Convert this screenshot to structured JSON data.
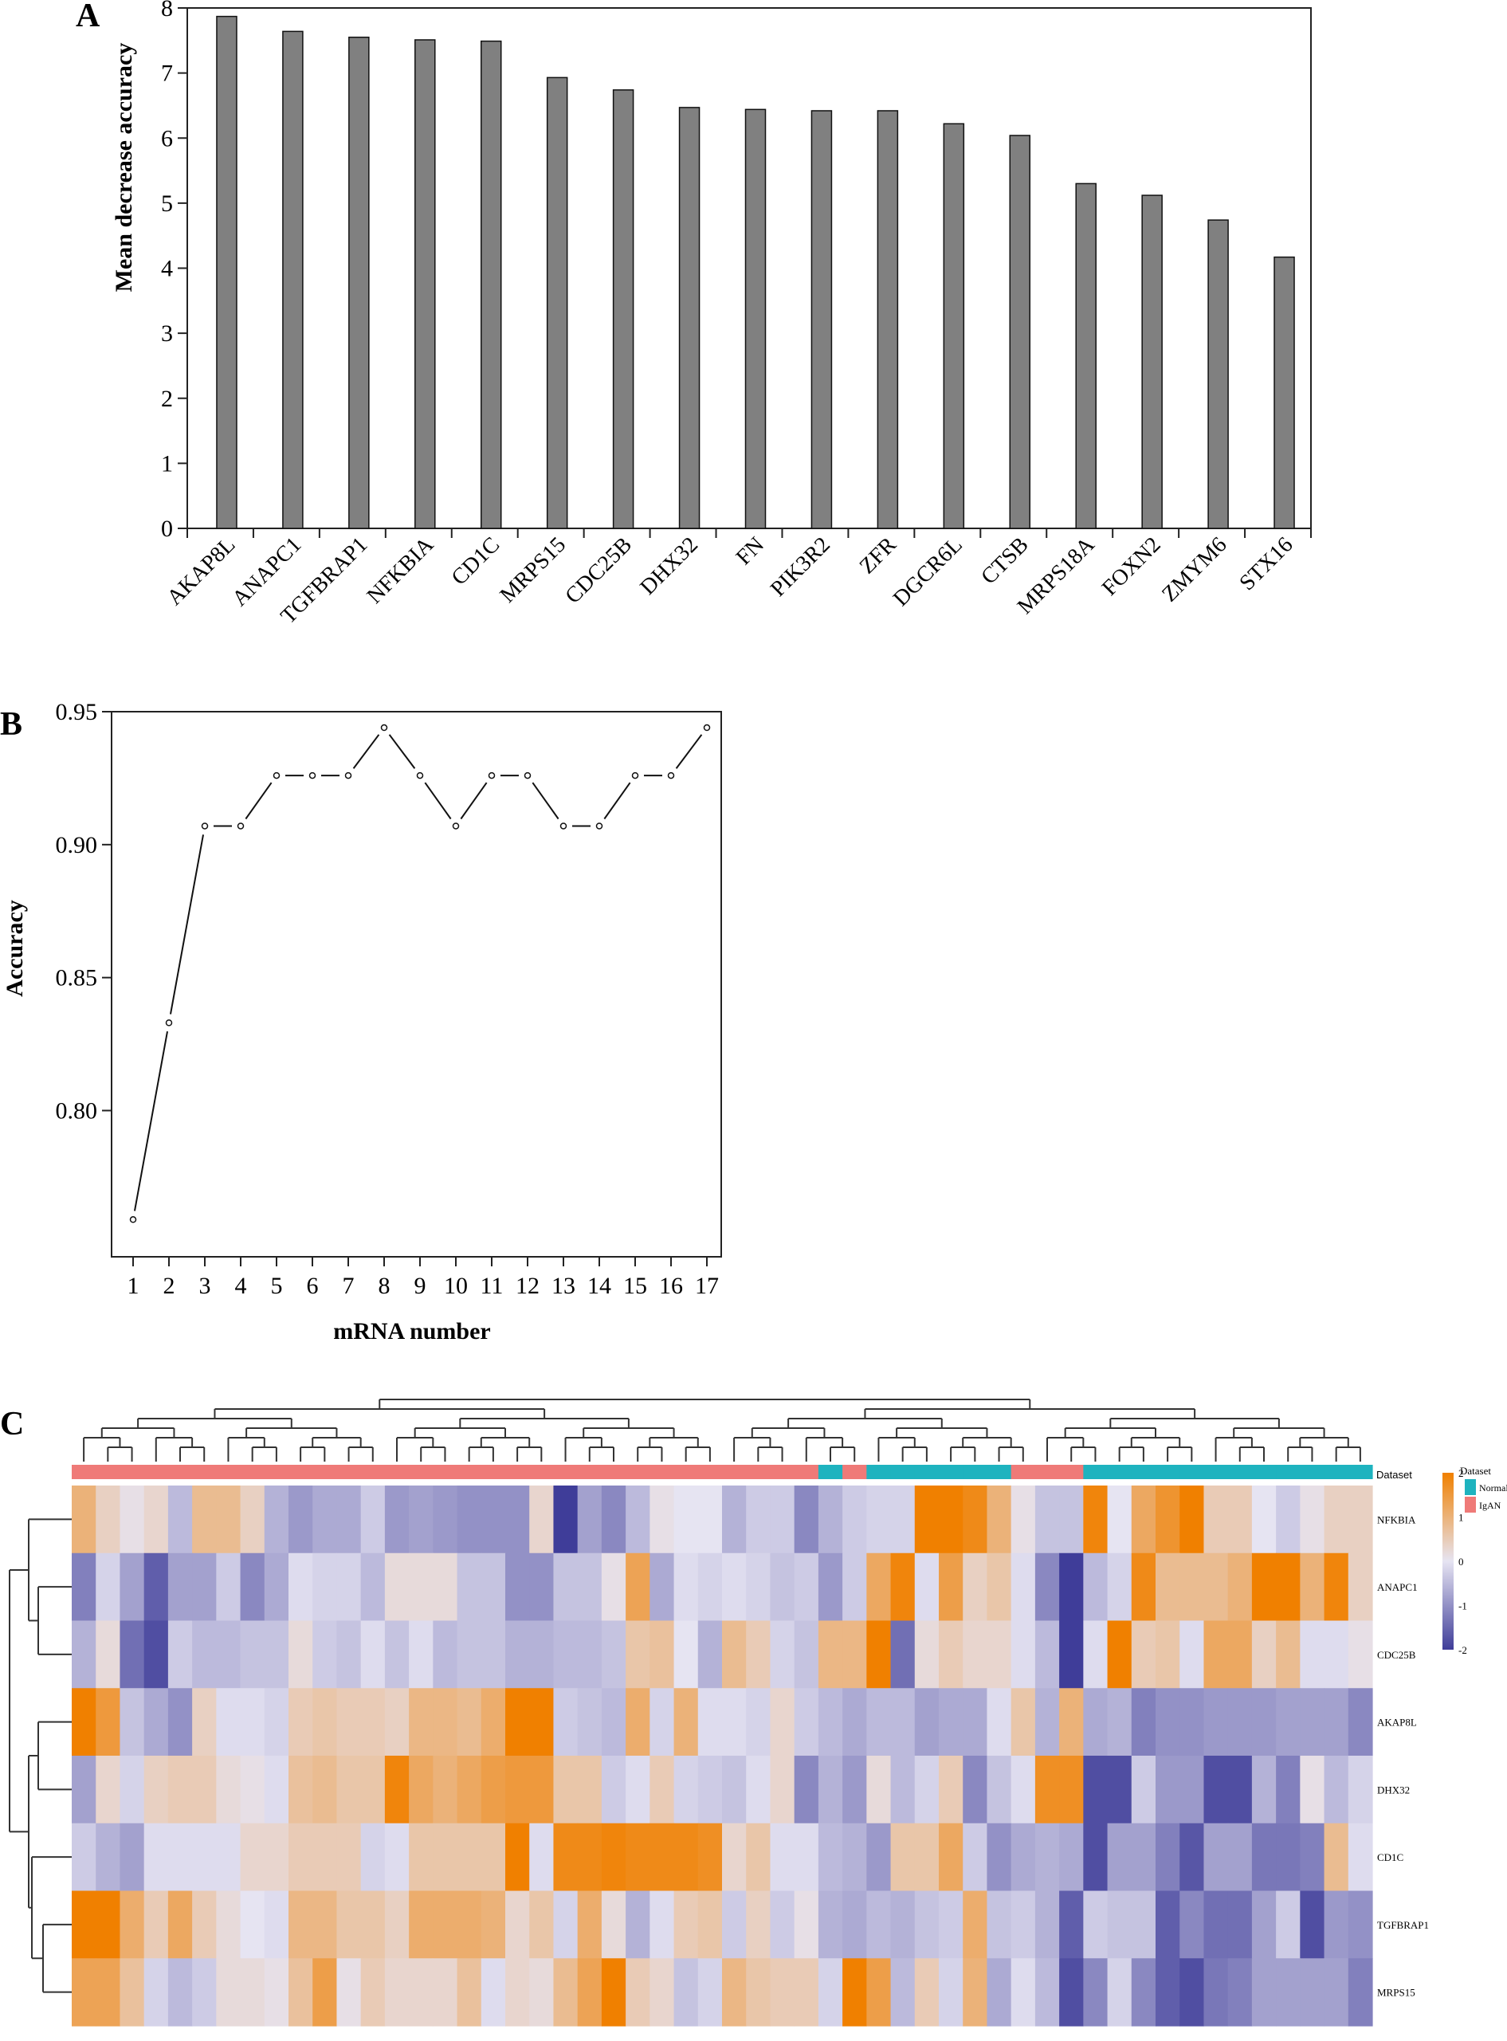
{
  "chart_data": [
    {
      "panel_label": "A",
      "type": "bar",
      "title": "",
      "xlabel": "",
      "ylabel": "Mean decrease accuracy",
      "ylim": [
        0,
        8
      ],
      "yticks": [
        0,
        1,
        2,
        3,
        4,
        5,
        6,
        7,
        8
      ],
      "grid": false,
      "bar_color": "#808080",
      "categories": [
        "AKAP8L",
        "ANAPC1",
        "TGFBRAP1",
        "NFKBIA",
        "CD1C",
        "MRPS15",
        "CDC25B",
        "DHX32",
        "FN",
        "PIK3R2",
        "ZFR",
        "DGCR6L",
        "CTSB",
        "MRPS18A",
        "FOXN2",
        "ZMYM6",
        "STX16"
      ],
      "values": [
        7.87,
        7.64,
        7.55,
        7.51,
        7.49,
        6.93,
        6.74,
        6.47,
        6.44,
        6.42,
        6.42,
        6.22,
        6.04,
        5.3,
        5.12,
        4.74,
        4.17
      ]
    },
    {
      "panel_label": "B",
      "type": "line",
      "title": "",
      "xlabel": "mRNA number",
      "ylabel": "Accuracy",
      "x": [
        1,
        2,
        3,
        4,
        5,
        6,
        7,
        8,
        9,
        10,
        11,
        12,
        13,
        14,
        15,
        16,
        17
      ],
      "values": [
        0.759,
        0.833,
        0.907,
        0.907,
        0.926,
        0.926,
        0.926,
        0.944,
        0.926,
        0.907,
        0.926,
        0.926,
        0.907,
        0.907,
        0.926,
        0.926,
        0.944
      ],
      "ylim": [
        0.745,
        0.95
      ],
      "yticks": [
        "0.80",
        "0.85",
        "0.90",
        "0.95"
      ],
      "ytick_values": [
        0.8,
        0.85,
        0.9,
        0.95
      ],
      "xticks": [
        "1",
        "2",
        "3",
        "4",
        "5",
        "6",
        "7",
        "8",
        "9",
        "10",
        "11",
        "12",
        "13",
        "14",
        "15",
        "16",
        "17"
      ],
      "grid": false,
      "marker": "open-circle"
    },
    {
      "panel_label": "C",
      "type": "heatmap",
      "title": "",
      "rows": [
        "NFKBIA",
        "ANAPC1",
        "CDC25B",
        "AKAP8L",
        "DHX32",
        "CD1C",
        "TGFBRAP1",
        "MRPS15"
      ],
      "annotation_label": "Dataset",
      "column_groups": [
        "IgAN",
        "IgAN",
        "IgAN",
        "IgAN",
        "IgAN",
        "IgAN",
        "IgAN",
        "IgAN",
        "IgAN",
        "IgAN",
        "IgAN",
        "IgAN",
        "IgAN",
        "IgAN",
        "IgAN",
        "IgAN",
        "IgAN",
        "IgAN",
        "IgAN",
        "IgAN",
        "IgAN",
        "IgAN",
        "IgAN",
        "IgAN",
        "IgAN",
        "IgAN",
        "IgAN",
        "IgAN",
        "IgAN",
        "IgAN",
        "IgAN",
        "Normal",
        "IgAN",
        "Normal",
        "Normal",
        "Normal",
        "Normal",
        "Normal",
        "Normal",
        "IgAN",
        "IgAN",
        "IgAN",
        "Normal",
        "Normal",
        "Normal",
        "Normal",
        "Normal",
        "Normal",
        "Normal",
        "Normal",
        "Normal",
        "Normal",
        "Normal",
        "Normal"
      ],
      "values": [
        [
          1.0,
          0.4,
          0.1,
          0.3,
          -0.5,
          0.8,
          0.8,
          0.4,
          -0.6,
          -0.9,
          -0.7,
          -0.7,
          -0.3,
          -0.9,
          -0.8,
          -0.9,
          -1.0,
          -1.0,
          -1.0,
          0.3,
          -2.0,
          -0.8,
          -1.1,
          -0.5,
          0.1,
          0.0,
          0.0,
          -0.6,
          -0.3,
          -0.3,
          -1.1,
          -0.6,
          -0.3,
          -0.2,
          -0.2,
          2.0,
          2.0,
          1.8,
          1.0,
          0.1,
          -0.4,
          -0.4,
          1.9,
          0.0,
          1.2,
          1.6,
          2.0,
          0.5,
          0.5,
          0.0,
          -0.3,
          0.1,
          0.4,
          0.4
        ],
        [
          -1.2,
          -0.2,
          -0.8,
          -1.6,
          -0.8,
          -0.8,
          -0.3,
          -1.1,
          -0.7,
          -0.1,
          -0.2,
          -0.2,
          -0.5,
          0.2,
          0.2,
          0.2,
          -0.4,
          -0.4,
          -1.0,
          -1.0,
          -0.4,
          -0.4,
          0.1,
          1.3,
          -0.7,
          -0.1,
          -0.2,
          -0.1,
          -0.2,
          -0.4,
          -0.3,
          -0.9,
          -0.3,
          1.2,
          1.9,
          -0.1,
          1.4,
          0.4,
          0.6,
          -0.1,
          -1.1,
          -2.0,
          -0.5,
          -0.2,
          1.8,
          0.8,
          0.8,
          0.8,
          1.0,
          2.0,
          2.0,
          1.0,
          1.9,
          0.4
        ],
        [
          -0.6,
          0.2,
          -1.4,
          -1.8,
          -0.3,
          -0.5,
          -0.5,
          -0.4,
          -0.4,
          0.2,
          -0.3,
          -0.4,
          -0.1,
          -0.4,
          -0.1,
          -0.5,
          -0.4,
          -0.4,
          -0.6,
          -0.6,
          -0.5,
          -0.5,
          -0.4,
          0.6,
          0.7,
          0.0,
          -0.6,
          0.8,
          0.5,
          -0.2,
          -0.4,
          0.9,
          0.9,
          2.0,
          -1.4,
          0.2,
          0.5,
          0.3,
          0.3,
          -0.1,
          -0.5,
          -2.0,
          -0.1,
          2.0,
          0.5,
          0.6,
          -0.1,
          1.2,
          1.2,
          0.4,
          0.8,
          -0.1,
          -0.1,
          0.1
        ],
        [
          2.0,
          1.5,
          -0.4,
          -0.7,
          -1.0,
          0.4,
          -0.1,
          -0.1,
          -0.2,
          0.5,
          0.6,
          0.5,
          0.5,
          0.4,
          0.9,
          0.9,
          0.8,
          1.1,
          2.0,
          2.0,
          -0.3,
          -0.4,
          -0.5,
          1.1,
          -0.2,
          1.0,
          -0.1,
          -0.1,
          -0.2,
          0.3,
          -0.3,
          -0.5,
          -0.7,
          -0.5,
          -0.5,
          -0.8,
          -0.7,
          -0.7,
          -0.1,
          0.6,
          -0.6,
          1.0,
          -0.7,
          -0.6,
          -1.2,
          -1.0,
          -1.0,
          -0.9,
          -0.9,
          -0.9,
          -0.8,
          -0.8,
          -0.8,
          -1.1
        ],
        [
          -0.8,
          0.3,
          -0.2,
          0.4,
          0.5,
          0.5,
          0.2,
          0.1,
          -0.1,
          0.7,
          0.8,
          0.6,
          0.6,
          1.9,
          1.2,
          1.0,
          1.2,
          1.4,
          1.5,
          1.5,
          0.6,
          0.6,
          -0.3,
          -0.1,
          0.5,
          -0.2,
          -0.3,
          -0.4,
          -0.1,
          0.3,
          -1.1,
          -0.6,
          -0.9,
          0.2,
          -0.5,
          -0.2,
          0.5,
          -1.1,
          -0.4,
          -0.1,
          1.7,
          1.7,
          -1.8,
          -1.8,
          -0.3,
          -0.9,
          -0.9,
          -1.8,
          -1.8,
          -0.6,
          -1.2,
          0.1,
          -0.5,
          -0.2
        ],
        [
          -0.3,
          -0.6,
          -0.8,
          -0.1,
          -0.1,
          -0.1,
          -0.1,
          0.3,
          0.3,
          0.5,
          0.5,
          0.5,
          -0.2,
          -0.1,
          0.6,
          0.6,
          0.6,
          0.6,
          2.0,
          -0.1,
          1.8,
          1.8,
          1.9,
          1.8,
          1.8,
          1.8,
          1.7,
          0.3,
          0.6,
          -0.1,
          -0.1,
          -0.5,
          -0.6,
          -0.9,
          0.6,
          0.6,
          1.2,
          -0.3,
          -1.0,
          -0.7,
          -0.6,
          -0.7,
          -1.8,
          -0.8,
          -0.8,
          -1.2,
          -1.7,
          -0.8,
          -0.8,
          -1.3,
          -1.3,
          -1.2,
          0.8,
          -0.1
        ],
        [
          2.0,
          2.0,
          1.1,
          0.5,
          1.2,
          0.5,
          0.2,
          0.0,
          -0.1,
          0.9,
          0.9,
          0.6,
          0.6,
          0.4,
          1.1,
          1.1,
          1.1,
          1.0,
          0.3,
          0.6,
          -0.2,
          1.1,
          0.2,
          -0.6,
          -0.1,
          0.5,
          0.6,
          -0.3,
          0.4,
          -0.3,
          0.1,
          -0.6,
          -0.7,
          -0.5,
          -0.6,
          -0.4,
          -0.3,
          1.1,
          -0.4,
          -0.3,
          -0.6,
          -1.6,
          -0.3,
          -0.4,
          -0.4,
          -1.6,
          -1.1,
          -1.4,
          -1.4,
          -0.8,
          -0.3,
          -1.8,
          -0.9,
          -1.0
        ],
        [
          1.3,
          1.3,
          0.7,
          -0.2,
          -0.5,
          -0.3,
          0.2,
          0.2,
          0.1,
          0.7,
          1.4,
          0.1,
          0.5,
          0.3,
          0.3,
          0.3,
          0.7,
          -0.1,
          0.3,
          0.2,
          0.8,
          1.3,
          2.0,
          0.5,
          0.3,
          -0.4,
          -0.2,
          0.9,
          0.6,
          0.5,
          0.5,
          -0.2,
          2.0,
          1.4,
          -0.5,
          0.5,
          -0.2,
          1.0,
          -0.7,
          -0.1,
          -0.5,
          -1.8,
          -1.1,
          -0.2,
          -1.1,
          -1.6,
          -1.8,
          -1.3,
          -1.2,
          -0.8,
          -0.8,
          -0.8,
          -0.8,
          -1.2
        ]
      ],
      "color_scale": {
        "min": -2,
        "max": 2,
        "low_color": "#3f3d99",
        "mid_color": "#e6e4f2",
        "high_color": "#f08000",
        "ticks": [
          "2",
          "1",
          "0",
          "-1",
          "-2"
        ]
      },
      "legend": {
        "title": "Dataset",
        "items": [
          {
            "label": "Normal",
            "color": "#1eb3bf"
          },
          {
            "label": "IgAN",
            "color": "#ef7a78"
          }
        ]
      },
      "row_dendrogram": true,
      "column_dendrogram": true
    }
  ]
}
